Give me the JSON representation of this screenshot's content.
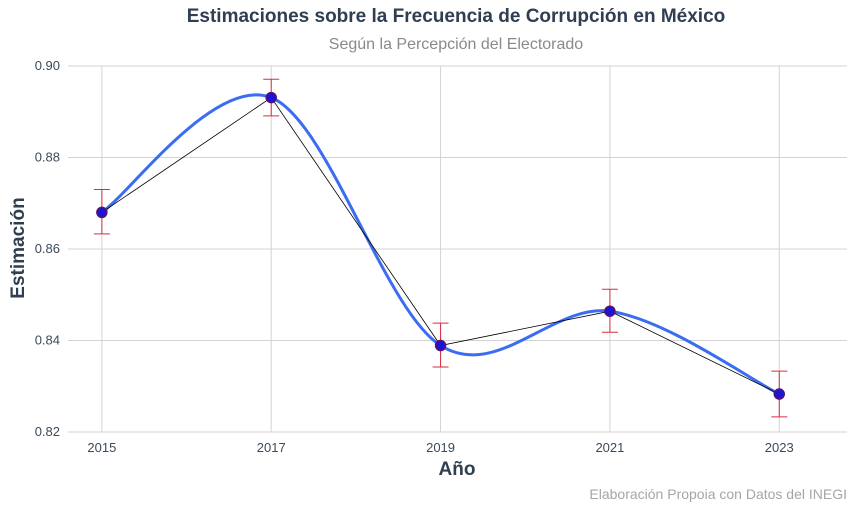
{
  "chart_data": {
    "type": "line",
    "title": "Estimaciones sobre la Frecuencia de Corrupción en México",
    "subtitle": "Según la Percepción del Electorado",
    "xlabel": "Año",
    "ylabel": "Estimación",
    "caption": "Elaboración Propoia con Datos del INEGI",
    "x": [
      2015,
      2017,
      2019,
      2021,
      2023
    ],
    "values": [
      0.868,
      0.8931,
      0.8389,
      0.8464,
      0.8283
    ],
    "error_low": [
      0.8633,
      0.8891,
      0.8342,
      0.8418,
      0.8233
    ],
    "error_high": [
      0.873,
      0.8971,
      0.8438,
      0.8512,
      0.8333
    ],
    "xlim": [
      2014.6,
      2023.8
    ],
    "ylim": [
      0.82,
      0.9
    ],
    "yticks": [
      "0.82",
      "0.84",
      "0.86",
      "0.88",
      "0.90"
    ],
    "xticks": [
      "2015",
      "2017",
      "2019",
      "2021",
      "2023"
    ],
    "grid": true,
    "colors": {
      "smooth_line": "#3b6cf2",
      "connect_line": "#000000",
      "error_bar": "#d62e3c",
      "point": "#1a14d6",
      "point_edge": "#5a0f6e",
      "grid": "#d3d3d3"
    }
  }
}
